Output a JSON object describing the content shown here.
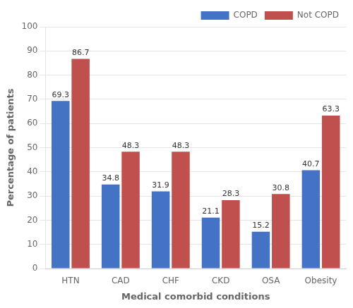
{
  "chart_data": {
    "type": "bar",
    "categories": [
      "HTN",
      "CAD",
      "CHF",
      "CKD",
      "OSA",
      "Obesity"
    ],
    "series": [
      {
        "name": "COPD",
        "color": "#4472C4",
        "values": [
          69.3,
          34.8,
          31.9,
          21.1,
          15.2,
          40.7
        ]
      },
      {
        "name": "Not COPD",
        "color": "#C0504D",
        "values": [
          86.7,
          48.3,
          48.3,
          28.3,
          30.8,
          63.3
        ]
      }
    ],
    "xlabel": "Medical comorbid conditions",
    "ylabel": "Percentage of patients",
    "ylim": [
      0,
      100
    ],
    "yticks": [
      0,
      10,
      20,
      30,
      40,
      50,
      60,
      70,
      80,
      90,
      100
    ],
    "grid": true,
    "legend": "upper right",
    "data_labels": true
  }
}
